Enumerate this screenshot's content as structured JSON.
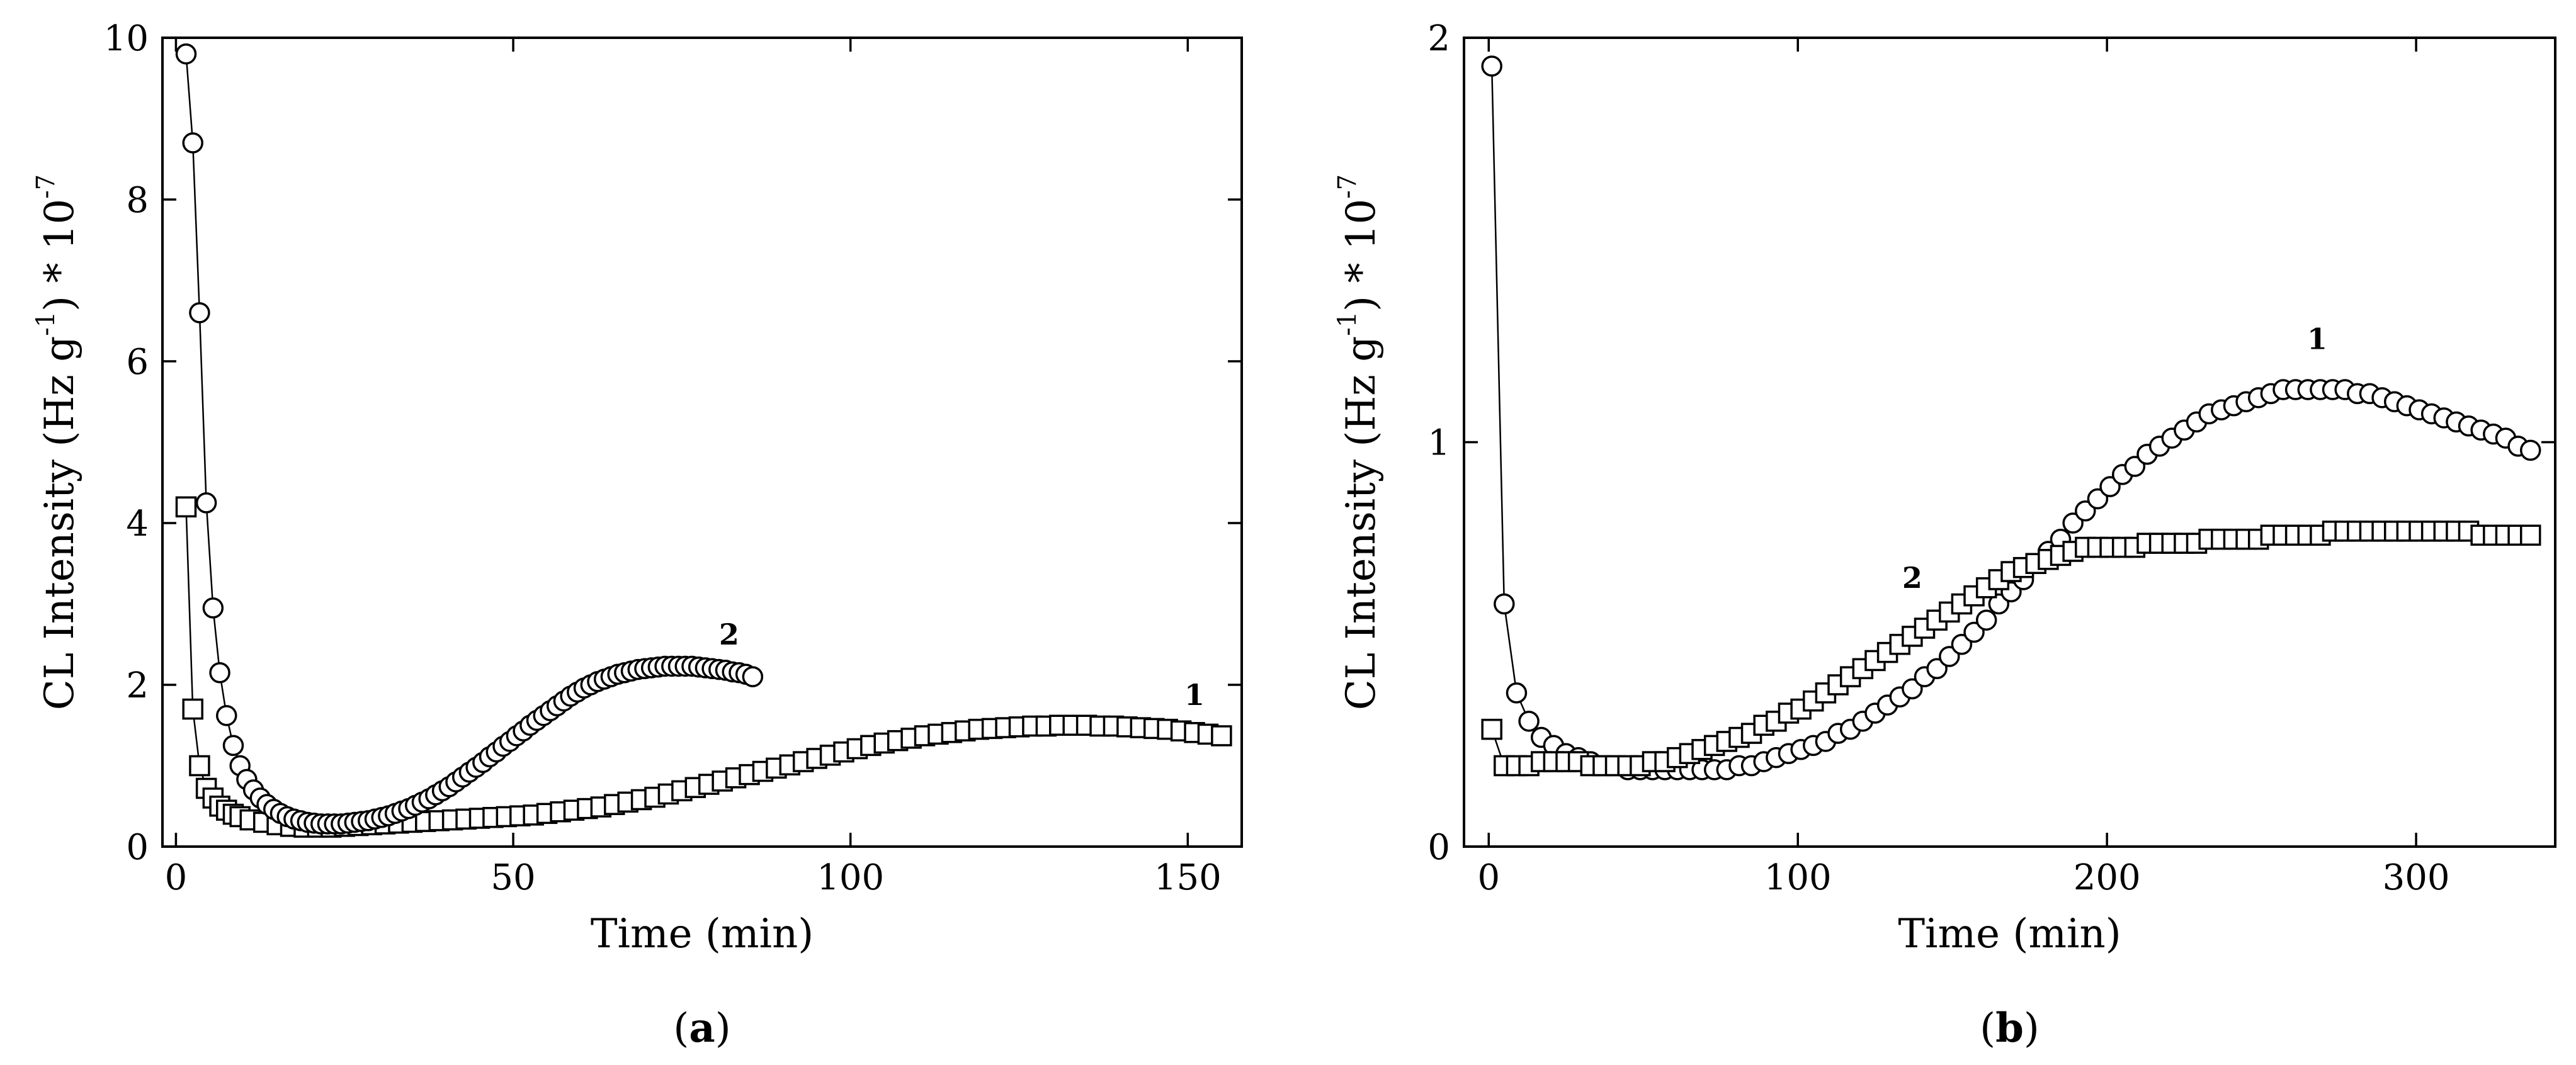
{
  "chart_data": [
    {
      "id": "a",
      "type": "scatter",
      "caption": {
        "open": "(",
        "letter": "a",
        "close": ")"
      },
      "xlabel": "Time (min)",
      "ylabel": {
        "main": "CL Intensity (Hz g",
        "sup1": "-1",
        "mid": ") * 10",
        "sup2": "-7"
      },
      "xlim": [
        -2,
        158
      ],
      "ylim": [
        0,
        10
      ],
      "xticks": [
        0,
        50,
        100,
        150
      ],
      "yticks": [
        0,
        2,
        4,
        6,
        8,
        10
      ],
      "series": [
        {
          "name": "1",
          "marker": "square",
          "label": "1",
          "label_at": [
            151,
            1.75
          ],
          "x": [
            1.5,
            2.5,
            3.5,
            4.5,
            5.5,
            6.5,
            7.5,
            8.5,
            9.5,
            11,
            13,
            15,
            17,
            19,
            21,
            23,
            25,
            27,
            29,
            31,
            33,
            35,
            37,
            39,
            41,
            43,
            45,
            47,
            49,
            51,
            53,
            55,
            57,
            59,
            61,
            63,
            65,
            67,
            69,
            71,
            73,
            75,
            77,
            79,
            81,
            83,
            85,
            87,
            89,
            91,
            93,
            95,
            97,
            99,
            101,
            103,
            105,
            107,
            109,
            111,
            113,
            115,
            117,
            119,
            121,
            123,
            125,
            127,
            129,
            131,
            133,
            135,
            137,
            139,
            141,
            143,
            145,
            147,
            149,
            151,
            153,
            155
          ],
          "y": [
            4.2,
            1.7,
            1.0,
            0.72,
            0.6,
            0.5,
            0.45,
            0.4,
            0.37,
            0.33,
            0.3,
            0.27,
            0.25,
            0.24,
            0.24,
            0.24,
            0.25,
            0.26,
            0.27,
            0.28,
            0.29,
            0.3,
            0.31,
            0.32,
            0.33,
            0.34,
            0.35,
            0.36,
            0.37,
            0.38,
            0.39,
            0.41,
            0.43,
            0.45,
            0.47,
            0.49,
            0.52,
            0.55,
            0.58,
            0.61,
            0.65,
            0.69,
            0.73,
            0.77,
            0.81,
            0.85,
            0.89,
            0.93,
            0.97,
            1.01,
            1.05,
            1.09,
            1.13,
            1.17,
            1.21,
            1.25,
            1.28,
            1.31,
            1.34,
            1.37,
            1.39,
            1.41,
            1.43,
            1.45,
            1.46,
            1.47,
            1.48,
            1.49,
            1.49,
            1.5,
            1.5,
            1.5,
            1.49,
            1.49,
            1.48,
            1.47,
            1.46,
            1.45,
            1.43,
            1.41,
            1.39,
            1.37
          ]
        },
        {
          "name": "2",
          "marker": "circle",
          "label": "2",
          "label_at": [
            82,
            2.5
          ],
          "x": [
            1.5,
            2.5,
            3.5,
            4.5,
            5.5,
            6.5,
            7.5,
            8.5,
            9.5,
            10.5,
            11.5,
            12.5,
            13.5,
            14.5,
            15.5,
            16.5,
            17.5,
            18.5,
            19.5,
            20.5,
            21.5,
            22.5,
            23.5,
            24.5,
            25.5,
            26.5,
            27.5,
            28.5,
            29.5,
            30.5,
            31.5,
            32.5,
            33.5,
            34.5,
            35.5,
            36.5,
            37.5,
            38.5,
            39.5,
            40.5,
            41.5,
            42.5,
            43.5,
            44.5,
            45.5,
            46.5,
            47.5,
            48.5,
            49.5,
            50.5,
            51.5,
            52.5,
            53.5,
            54.5,
            55.5,
            56.5,
            57.5,
            58.5,
            59.5,
            60.5,
            61.5,
            62.5,
            63.5,
            64.5,
            65.5,
            66.5,
            67.5,
            68.5,
            69.5,
            70.5,
            71.5,
            72.5,
            73.5,
            74.5,
            75.5,
            76.5,
            77.5,
            78.5,
            79.5,
            80.5,
            81.5,
            82.5,
            83.5,
            84.5,
            85.5
          ],
          "y": [
            9.8,
            8.7,
            6.6,
            4.25,
            2.95,
            2.15,
            1.62,
            1.25,
            1.0,
            0.83,
            0.7,
            0.6,
            0.52,
            0.46,
            0.41,
            0.37,
            0.34,
            0.32,
            0.3,
            0.29,
            0.28,
            0.28,
            0.28,
            0.28,
            0.29,
            0.3,
            0.31,
            0.32,
            0.34,
            0.36,
            0.38,
            0.41,
            0.44,
            0.47,
            0.51,
            0.55,
            0.59,
            0.64,
            0.69,
            0.74,
            0.8,
            0.86,
            0.92,
            0.98,
            1.04,
            1.11,
            1.17,
            1.24,
            1.3,
            1.37,
            1.43,
            1.5,
            1.56,
            1.62,
            1.68,
            1.74,
            1.8,
            1.86,
            1.91,
            1.96,
            2.0,
            2.04,
            2.07,
            2.1,
            2.13,
            2.15,
            2.17,
            2.19,
            2.2,
            2.21,
            2.22,
            2.23,
            2.23,
            2.23,
            2.23,
            2.23,
            2.22,
            2.21,
            2.2,
            2.19,
            2.18,
            2.16,
            2.15,
            2.13,
            2.1
          ]
        }
      ]
    },
    {
      "id": "b",
      "type": "scatter",
      "caption": {
        "open": "(",
        "letter": "b",
        "close": ")"
      },
      "xlabel": "Time (min)",
      "ylabel": {
        "main": "CL Intensity (Hz g",
        "sup1": "-1",
        "mid": ") * 10",
        "sup2": "-7"
      },
      "xlim": [
        -8,
        345
      ],
      "ylim": [
        0,
        2
      ],
      "xticks": [
        0,
        100,
        200,
        300
      ],
      "yticks": [
        0,
        1,
        2
      ],
      "series": [
        {
          "name": "1",
          "marker": "circle",
          "label": "1",
          "label_at": [
            268,
            1.23
          ],
          "x": [
            1,
            5,
            9,
            13,
            17,
            21,
            25,
            29,
            33,
            37,
            41,
            45,
            49,
            53,
            57,
            61,
            65,
            69,
            73,
            77,
            81,
            85,
            89,
            93,
            97,
            101,
            105,
            109,
            113,
            117,
            121,
            125,
            129,
            133,
            137,
            141,
            145,
            149,
            153,
            157,
            161,
            165,
            169,
            173,
            177,
            181,
            185,
            189,
            193,
            197,
            201,
            205,
            209,
            213,
            217,
            221,
            225,
            229,
            233,
            237,
            241,
            245,
            249,
            253,
            257,
            261,
            265,
            269,
            273,
            277,
            281,
            285,
            289,
            293,
            297,
            301,
            305,
            309,
            313,
            317,
            321,
            325,
            329,
            333,
            337
          ],
          "y": [
            1.93,
            0.6,
            0.38,
            0.31,
            0.27,
            0.25,
            0.23,
            0.22,
            0.21,
            0.2,
            0.2,
            0.19,
            0.19,
            0.19,
            0.19,
            0.19,
            0.19,
            0.19,
            0.19,
            0.19,
            0.2,
            0.2,
            0.21,
            0.22,
            0.23,
            0.24,
            0.25,
            0.26,
            0.28,
            0.29,
            0.31,
            0.33,
            0.35,
            0.37,
            0.39,
            0.42,
            0.44,
            0.47,
            0.5,
            0.53,
            0.56,
            0.6,
            0.63,
            0.66,
            0.7,
            0.73,
            0.76,
            0.8,
            0.83,
            0.86,
            0.89,
            0.92,
            0.94,
            0.97,
            0.99,
            1.01,
            1.03,
            1.05,
            1.07,
            1.08,
            1.09,
            1.1,
            1.11,
            1.12,
            1.13,
            1.13,
            1.13,
            1.13,
            1.13,
            1.13,
            1.12,
            1.12,
            1.11,
            1.1,
            1.09,
            1.08,
            1.07,
            1.06,
            1.05,
            1.04,
            1.03,
            1.02,
            1.01,
            0.99,
            0.98
          ]
        },
        {
          "name": "2",
          "marker": "square",
          "label": "2",
          "label_at": [
            137,
            0.64
          ],
          "x": [
            1,
            5,
            9,
            13,
            17,
            21,
            25,
            29,
            33,
            37,
            41,
            45,
            49,
            53,
            57,
            61,
            65,
            69,
            73,
            77,
            81,
            85,
            89,
            93,
            97,
            101,
            105,
            109,
            113,
            117,
            121,
            125,
            129,
            133,
            137,
            141,
            145,
            149,
            153,
            157,
            161,
            165,
            169,
            173,
            177,
            181,
            185,
            189,
            193,
            197,
            201,
            205,
            209,
            213,
            217,
            221,
            225,
            229,
            233,
            237,
            241,
            245,
            249,
            253,
            257,
            261,
            265,
            269,
            273,
            277,
            281,
            285,
            289,
            293,
            297,
            301,
            305,
            309,
            313,
            317,
            321,
            325,
            329,
            333,
            337
          ],
          "y": [
            0.29,
            0.2,
            0.2,
            0.2,
            0.21,
            0.21,
            0.21,
            0.21,
            0.2,
            0.2,
            0.2,
            0.2,
            0.2,
            0.21,
            0.21,
            0.22,
            0.23,
            0.24,
            0.25,
            0.26,
            0.27,
            0.28,
            0.3,
            0.31,
            0.33,
            0.34,
            0.36,
            0.38,
            0.4,
            0.42,
            0.44,
            0.46,
            0.48,
            0.5,
            0.52,
            0.54,
            0.56,
            0.58,
            0.6,
            0.62,
            0.64,
            0.66,
            0.68,
            0.69,
            0.7,
            0.71,
            0.72,
            0.73,
            0.74,
            0.74,
            0.74,
            0.74,
            0.74,
            0.75,
            0.75,
            0.75,
            0.75,
            0.75,
            0.76,
            0.76,
            0.76,
            0.76,
            0.76,
            0.77,
            0.77,
            0.77,
            0.77,
            0.77,
            0.78,
            0.78,
            0.78,
            0.78,
            0.78,
            0.78,
            0.78,
            0.78,
            0.78,
            0.78,
            0.78,
            0.78,
            0.77,
            0.77,
            0.77,
            0.77,
            0.77
          ]
        }
      ]
    }
  ]
}
